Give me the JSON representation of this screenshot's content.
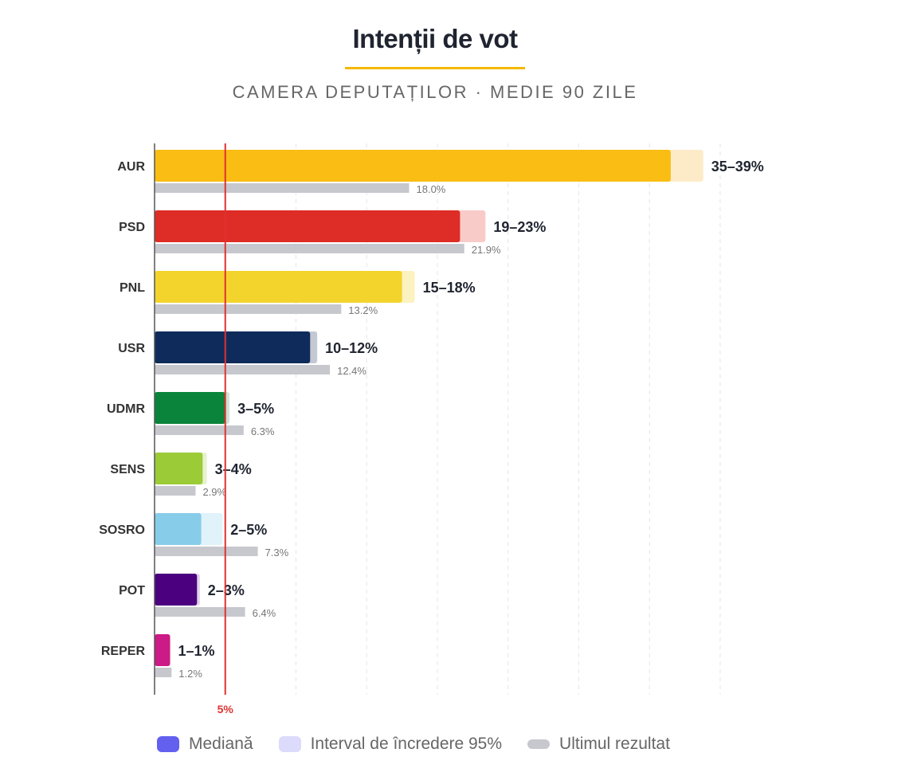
{
  "chart_data": {
    "type": "bar",
    "orientation": "horizontal",
    "title": "Intenții de vot",
    "subtitle": "CAMERA DEPUTAȚILOR · MEDIE 90 ZILE",
    "xlim": [
      0,
      40
    ],
    "grid": true,
    "threshold": {
      "value": 5,
      "label": "5%",
      "color": "#e03131"
    },
    "categories": [
      "AUR",
      "PSD",
      "PNL",
      "USR",
      "UDMR",
      "SENS",
      "SOSRO",
      "POT",
      "REPER"
    ],
    "series": [
      {
        "name": "Mediană",
        "values": [
          36.5,
          21.6,
          17.5,
          11.0,
          5.0,
          3.4,
          3.3,
          3.0,
          1.1
        ]
      },
      {
        "name": "Interval de încredere 95%",
        "upper": [
          38.8,
          23.4,
          18.4,
          11.5,
          5.3,
          3.7,
          4.8,
          3.2,
          1.1
        ]
      },
      {
        "name": "Ultimul rezultat",
        "values": [
          18.0,
          21.9,
          13.2,
          12.4,
          6.3,
          2.9,
          7.3,
          6.4,
          1.2
        ]
      }
    ],
    "range_labels": [
      "35–39%",
      "19–23%",
      "15–18%",
      "10–12%",
      "3–5%",
      "3–4%",
      "2–5%",
      "2–3%",
      "1–1%"
    ],
    "last_labels": [
      "18.0%",
      "21.9%",
      "13.2%",
      "12.4%",
      "6.3%",
      "2.9%",
      "7.3%",
      "6.4%",
      "1.2%"
    ],
    "colors": [
      "#f9bd14",
      "#de2d26",
      "#f3d42c",
      "#0f2b5b",
      "#0a843b",
      "#9ccb38",
      "#87cdea",
      "#4b007f",
      "#cc1a86"
    ],
    "ci_colors": [
      "#fdebc8",
      "#f9cbc8",
      "#fbf2c0",
      "#c3c8d3",
      "#cfe3d5",
      "#e6f2cd",
      "#e0f2fa",
      "#e0d0ec",
      "#f5c6e0"
    ],
    "last_color": "#c6c8cd",
    "legend_position": "bottom",
    "legend": [
      {
        "label": "Mediană",
        "color": "#6360f0"
      },
      {
        "label": "Interval de încredere 95%",
        "color": "#dcdbfb"
      },
      {
        "label": "Ultimul rezultat",
        "color": "#c6c8cd"
      }
    ]
  }
}
